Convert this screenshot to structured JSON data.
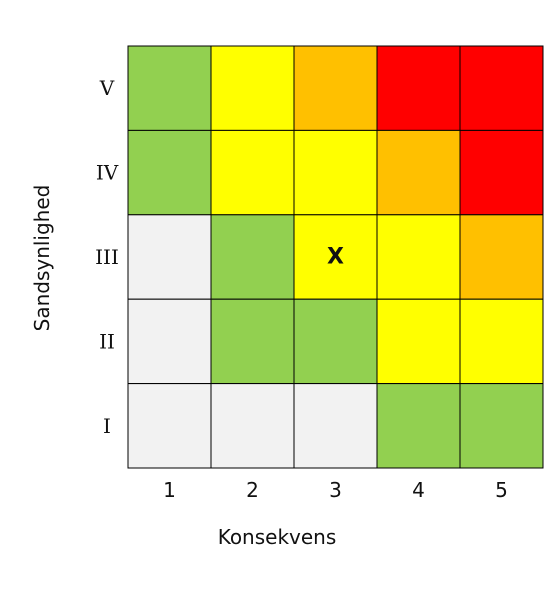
{
  "chart_data": {
    "type": "heatmap",
    "xlabel": "Konsekvens",
    "ylabel": "Sandsynlighed",
    "x_categories": [
      "1",
      "2",
      "3",
      "4",
      "5"
    ],
    "y_categories": [
      "V",
      "IV",
      "III",
      "II",
      "I"
    ],
    "cell_levels": [
      [
        "green",
        "yellow",
        "orange",
        "red",
        "red"
      ],
      [
        "green",
        "yellow",
        "yellow",
        "orange",
        "red"
      ],
      [
        "grey",
        "green",
        "yellow",
        "yellow",
        "orange"
      ],
      [
        "grey",
        "green",
        "green",
        "yellow",
        "yellow"
      ],
      [
        "grey",
        "grey",
        "grey",
        "green",
        "green"
      ]
    ],
    "marker": {
      "text": "X",
      "x": "3",
      "y": "III"
    },
    "colors": {
      "grey": "#f2f2f2",
      "green": "#92d050",
      "yellow": "#ffff00",
      "orange": "#ffc000",
      "red": "#ff0000"
    }
  }
}
